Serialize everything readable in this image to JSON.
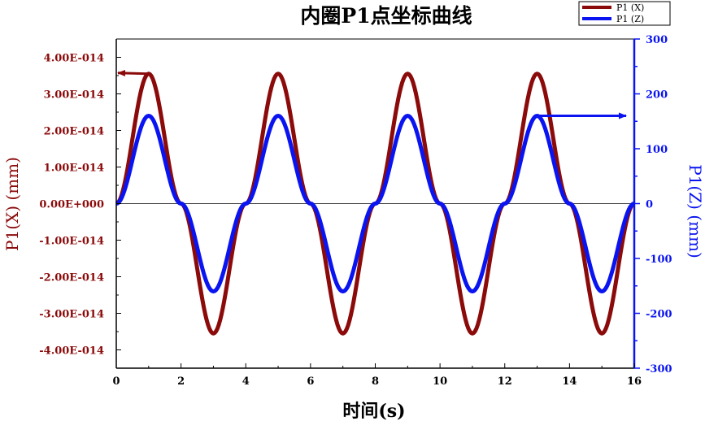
{
  "chart_data": {
    "type": "line",
    "title": "内圈P1点坐标曲线",
    "xlabel": "时间(s)",
    "ylabel_left": "P1(X)  (mm)",
    "ylabel_right": "P1(Z)  (mm)",
    "xlim": [
      0,
      16
    ],
    "ylim_left": [
      -4.5e-14,
      4.5e-14
    ],
    "ylim_right": [
      -300,
      300
    ],
    "x_ticks": [
      0,
      2,
      4,
      6,
      8,
      10,
      12,
      14,
      16
    ],
    "y_left_ticks": [
      4e-14,
      3e-14,
      2e-14,
      1e-14,
      0,
      -1e-14,
      -2e-14,
      -3e-14,
      -4e-14
    ],
    "y_left_tick_labels": [
      "4.00E-014",
      "3.00E-014",
      "2.00E-014",
      "1.00E-014",
      "0.00E+000",
      "-1.00E-014",
      "-2.00E-014",
      "-3.00E-014",
      "-4.00E-014"
    ],
    "y_right_ticks": [
      300,
      200,
      100,
      0,
      -100,
      -200,
      -300
    ],
    "y_right_tick_labels": [
      "300",
      "200",
      "100",
      "0",
      "-100",
      "-200",
      "-300"
    ],
    "legend_position": "top-right",
    "series": [
      {
        "name": "P1 (X)",
        "axis": "left",
        "color": "#8b0a0a",
        "x": [
          0,
          1,
          2,
          3,
          4,
          5,
          6,
          7,
          8,
          9,
          10,
          11,
          12,
          13,
          14,
          15,
          16
        ],
        "values": [
          0,
          3.55e-14,
          0,
          -3.55e-14,
          0,
          3.55e-14,
          0,
          -3.55e-14,
          0,
          3.55e-14,
          0,
          -3.55e-14,
          0,
          3.55e-14,
          0,
          -3.55e-14,
          0
        ]
      },
      {
        "name": "P1 (Z)",
        "axis": "right",
        "color": "#0a14f0",
        "x": [
          0,
          1,
          2,
          3,
          4,
          5,
          6,
          7,
          8,
          9,
          10,
          11,
          12,
          13,
          14,
          15,
          16
        ],
        "values": [
          0,
          160,
          0,
          -160,
          0,
          160,
          0,
          -160,
          0,
          160,
          0,
          -160,
          0,
          160,
          0,
          -160,
          0
        ]
      }
    ],
    "colors": {
      "left_axis": "#8b0a0a",
      "right_axis": "#0a14f0"
    }
  }
}
